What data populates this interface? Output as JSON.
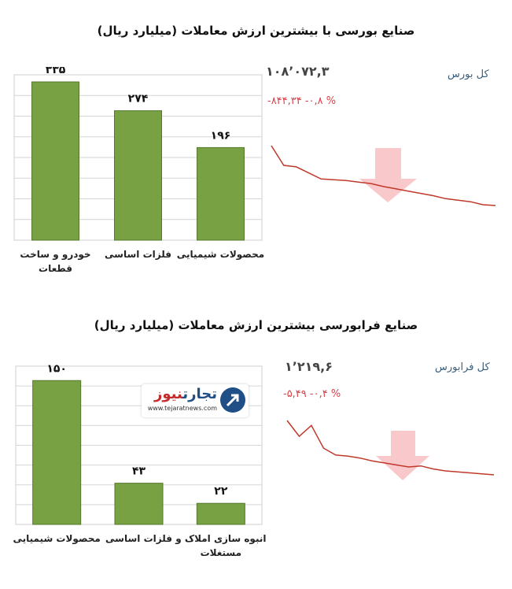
{
  "titles": {
    "bourse": "صنایع بورسی با بیشترین ارزش معاملات  (میلیارد ریال)",
    "farabourse": "صنایع فرابورسی بیشترین ارزش معاملات  (میلیارد ریال)"
  },
  "index_bourse": {
    "name": "کل بورس",
    "value": "۱۰۸٬۰۷۲,۳",
    "change": "-۸۴۴,۳۴  -۰,۸ %"
  },
  "index_farabourse": {
    "name": "کل فرابورس",
    "value": "۱٬۲۱۹,۶",
    "change": "-۵,۴۹  -۰,۴ %"
  },
  "logo": {
    "fa_part1": "تجارت",
    "fa_part2": "نیوز",
    "en": "www.tejaratnews.com"
  },
  "colors": {
    "bar": "#77a143",
    "bar_edge": "#56782e",
    "line": "#c0392b",
    "arrow": "#f8c2c5"
  },
  "chart_data": [
    {
      "type": "bar",
      "title": "صنایع بورسی با بیشترین ارزش معاملات  (میلیارد ریال)",
      "categories": [
        [
          "خودرو و ساخت",
          "قطعات"
        ],
        [
          "فلزات اساسی"
        ],
        [
          "محصولات شیمیایی"
        ]
      ],
      "values": [
        335,
        274,
        196
      ],
      "value_labels": [
        "۳۳۵",
        "۲۷۴",
        "۱۹۶"
      ],
      "ylim": [
        0,
        350
      ],
      "grid": true
    },
    {
      "type": "bar",
      "title": "صنایع فرابورسی بیشترین ارزش معاملات  (میلیارد ریال)",
      "categories": [
        [
          "محصولات شیمیایی"
        ],
        [
          "فلزات اساسی"
        ],
        [
          "انبوه سازی املاک و",
          "مستغلات"
        ]
      ],
      "values": [
        150,
        43,
        22
      ],
      "value_labels": [
        "۱۵۰",
        "۴۳",
        "۲۲"
      ],
      "ylim": [
        0,
        165
      ],
      "grid": true
    },
    {
      "type": "line",
      "series": [
        {
          "values": [
            108.84,
            108.58,
            108.56,
            108.48,
            108.4,
            108.39,
            108.38,
            108.36,
            108.34,
            108.3,
            108.27,
            108.24,
            108.21,
            108.18,
            108.14,
            108.12,
            108.1,
            108.06,
            108.05
          ]
        }
      ]
    },
    {
      "type": "line",
      "series": [
        {
          "values": [
            1225.1,
            1223.5,
            1224.6,
            1222.3,
            1221.6,
            1221.5,
            1221.3,
            1221.0,
            1220.8,
            1220.6,
            1220.4,
            1220.5,
            1220.2,
            1220.0,
            1219.9,
            1219.8,
            1219.7,
            1219.6
          ]
        }
      ]
    }
  ]
}
